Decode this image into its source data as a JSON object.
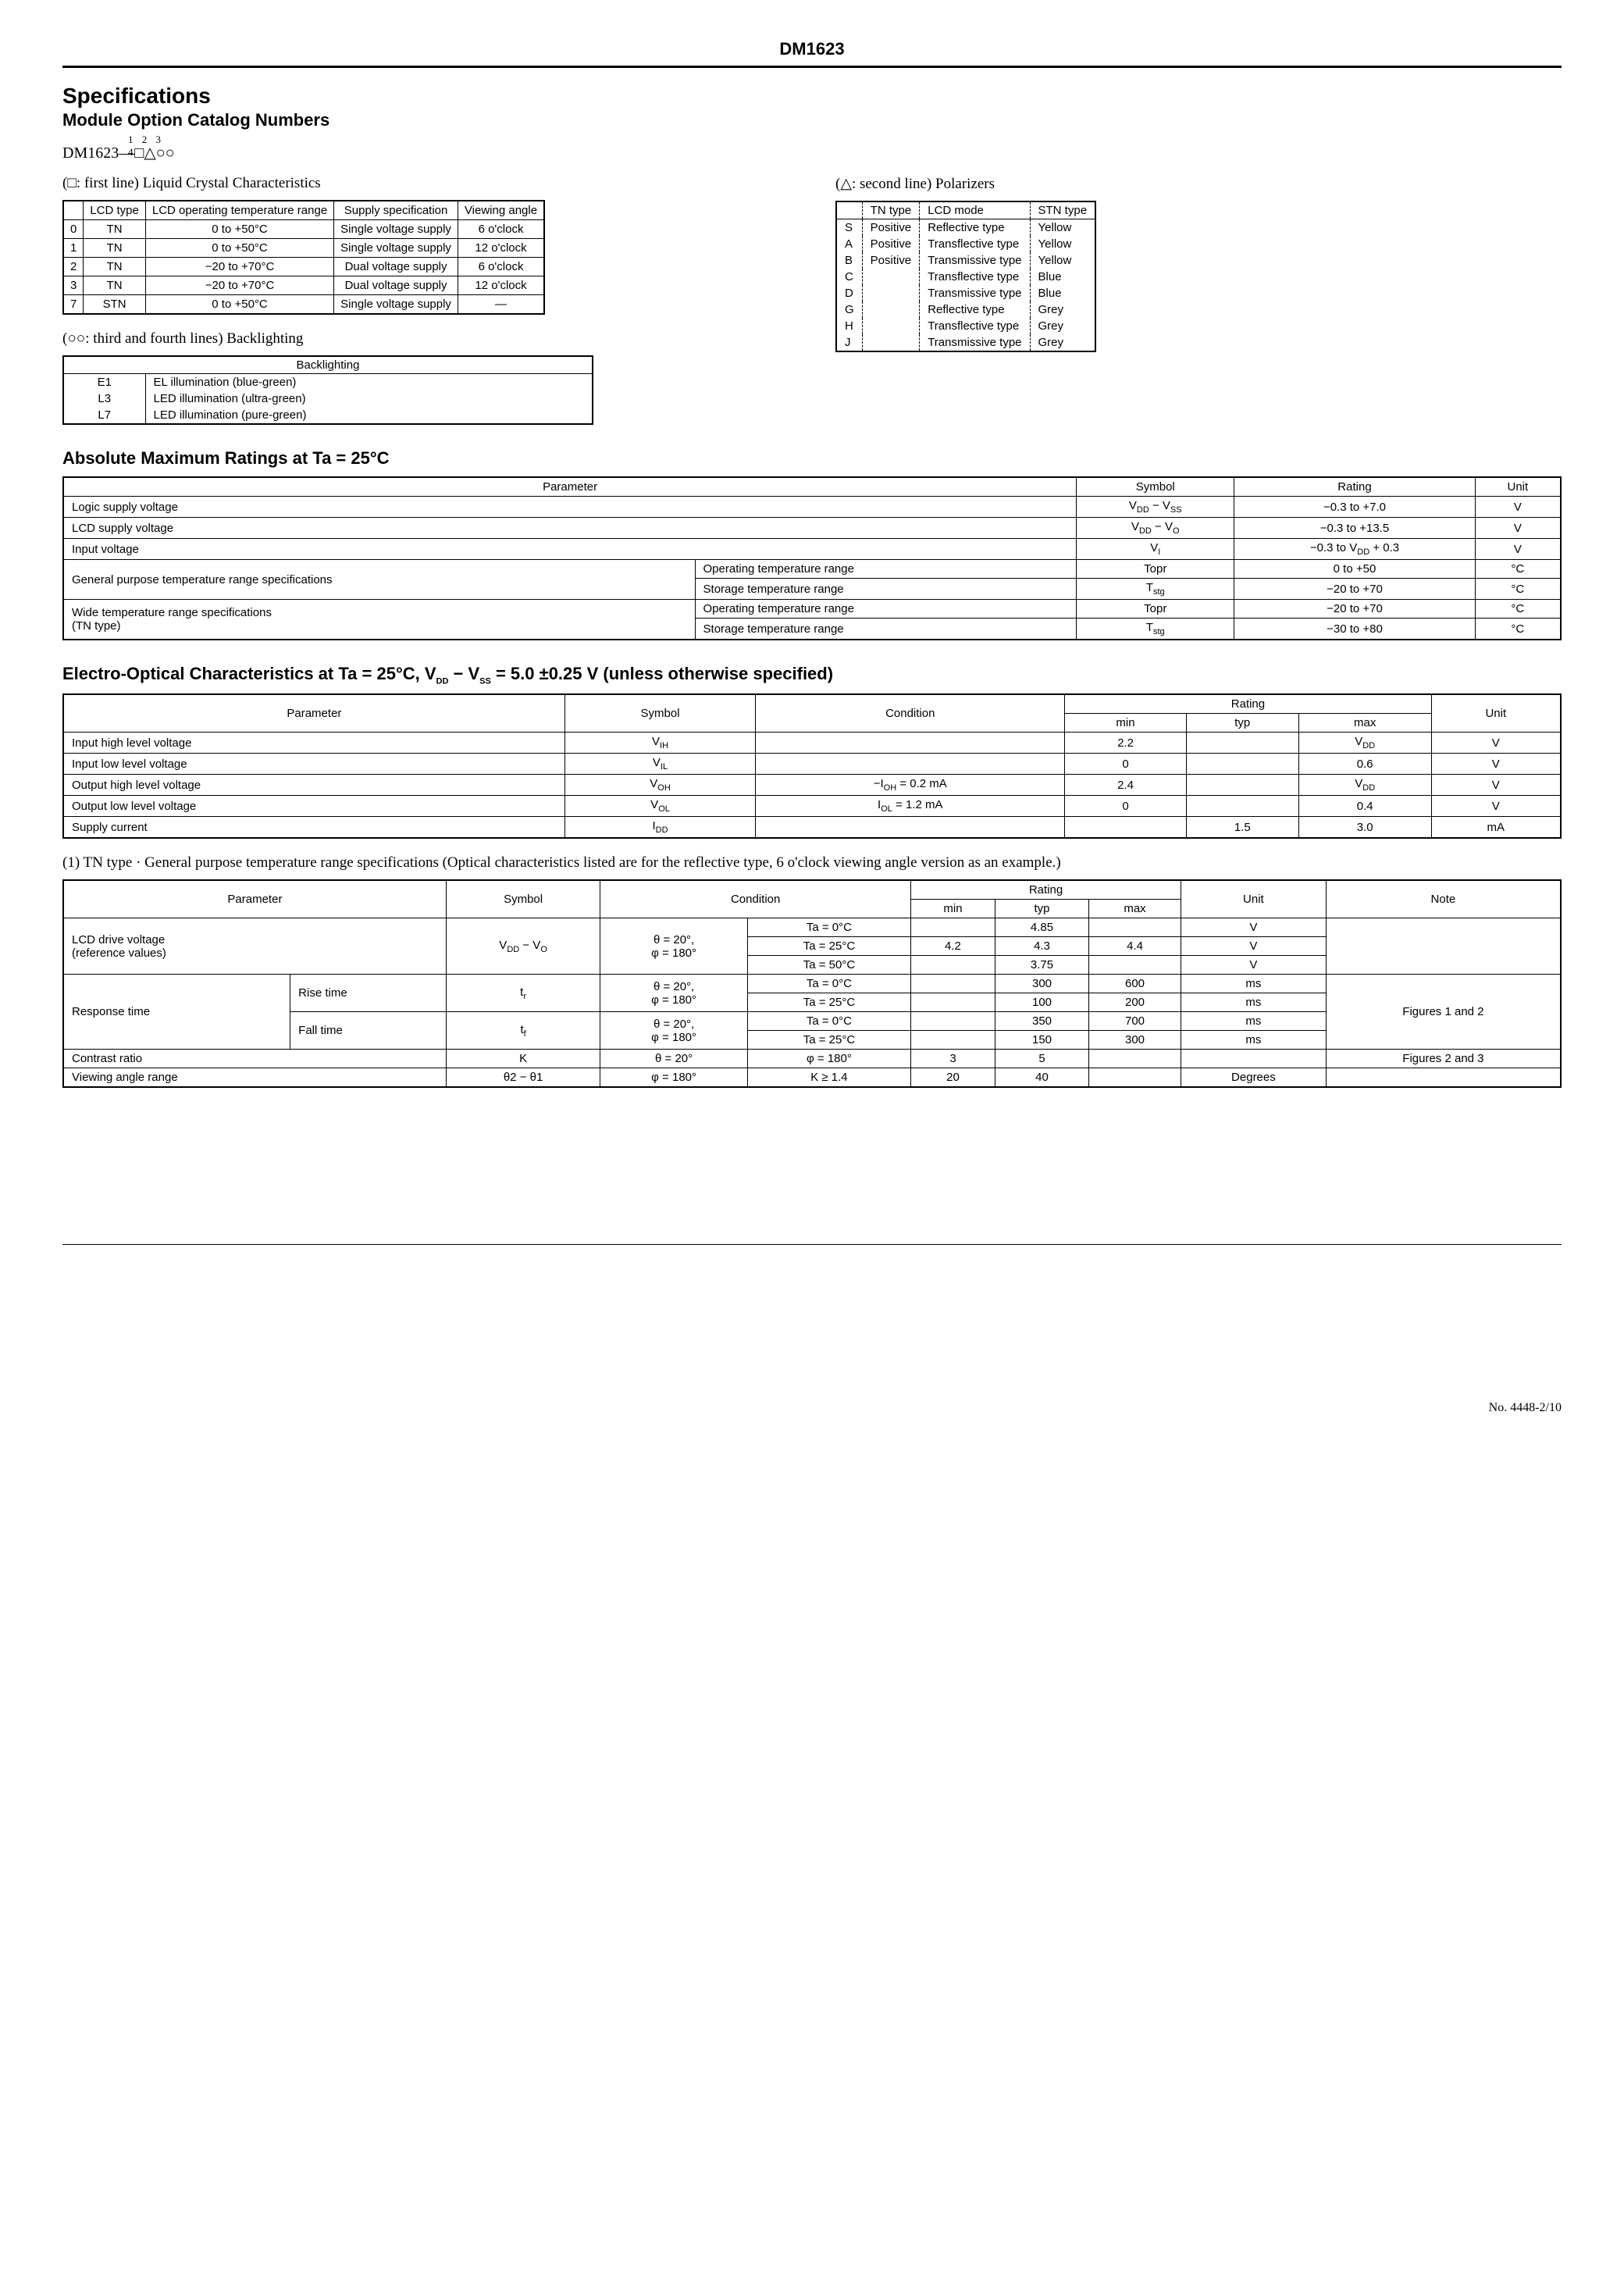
{
  "header": {
    "part_number": "DM1623"
  },
  "section1": {
    "title": "Specifications",
    "subtitle": "Module Option Catalog Numbers",
    "catalog_prefix": "DM1623—",
    "catalog_suffix": "□△○○",
    "digits": "1 2 3 4"
  },
  "lcd_table": {
    "caption": "(□: first line) Liquid Crystal Characteristics",
    "headers": [
      "",
      "LCD type",
      "LCD operating temperature range",
      "Supply specification",
      "Viewing angle"
    ],
    "rows": [
      [
        "0",
        "TN",
        "0 to +50°C",
        "Single voltage supply",
        "6 o'clock"
      ],
      [
        "1",
        "TN",
        "0 to +50°C",
        "Single voltage supply",
        "12 o'clock"
      ],
      [
        "2",
        "TN",
        "−20 to +70°C",
        "Dual voltage supply",
        "6 o'clock"
      ],
      [
        "3",
        "TN",
        "−20 to +70°C",
        "Dual voltage supply",
        "12 o'clock"
      ],
      [
        "7",
        "STN",
        "0 to +50°C",
        "Single voltage supply",
        "—"
      ]
    ]
  },
  "polarizer_table": {
    "caption": "(△: second line) Polarizers",
    "headers": [
      "",
      "TN type",
      "LCD mode",
      "STN type"
    ],
    "rows": [
      [
        "S",
        "Positive",
        "Reflective type",
        "Yellow"
      ],
      [
        "A",
        "Positive",
        "Transflective type",
        "Yellow"
      ],
      [
        "B",
        "Positive",
        "Transmissive type",
        "Yellow"
      ],
      [
        "C",
        "",
        "Transflective type",
        "Blue"
      ],
      [
        "D",
        "",
        "Transmissive type",
        "Blue"
      ],
      [
        "G",
        "",
        "Reflective type",
        "Grey"
      ],
      [
        "H",
        "",
        "Transflective type",
        "Grey"
      ],
      [
        "J",
        "",
        "Transmissive type",
        "Grey"
      ]
    ]
  },
  "backlight_table": {
    "caption": "(○○: third and fourth lines) Backlighting",
    "header": "Backlighting",
    "rows": [
      [
        "E1",
        "EL illumination (blue-green)"
      ],
      [
        "L3",
        "LED illumination (ultra-green)"
      ],
      [
        "L7",
        "LED illumination (pure-green)"
      ]
    ]
  },
  "abs_max": {
    "title": "Absolute Maximum Ratings at Ta = 25°C",
    "headers": [
      "Parameter",
      "",
      "Symbol",
      "Rating",
      "Unit"
    ],
    "rows": [
      {
        "param": "Logic supply voltage",
        "sub": "",
        "symbol": "V_DD − V_SS",
        "rating": "−0.3 to +7.0",
        "unit": "V"
      },
      {
        "param": "LCD supply voltage",
        "sub": "",
        "symbol": "V_DD − V_O",
        "rating": "−0.3 to +13.5",
        "unit": "V"
      },
      {
        "param": "Input voltage",
        "sub": "",
        "symbol": "V_I",
        "rating": "−0.3 to V_DD + 0.3",
        "unit": "V"
      },
      {
        "param": "General purpose temperature range specifications",
        "sub": "Operating temperature range",
        "symbol": "Topr",
        "rating": "0 to +50",
        "unit": "°C"
      },
      {
        "param": "",
        "sub": "Storage temperature range",
        "symbol": "T_stg",
        "rating": "−20 to +70",
        "unit": "°C"
      },
      {
        "param": "Wide temperature range specifications (TN type)",
        "sub": "Operating temperature range",
        "symbol": "Topr",
        "rating": "−20 to +70",
        "unit": "°C"
      },
      {
        "param": "",
        "sub": "Storage temperature range",
        "symbol": "T_stg",
        "rating": "−30 to +80",
        "unit": "°C"
      }
    ]
  },
  "electro_optical": {
    "title": "Electro-Optical Characteristics at Ta = 25°C, V_DD − V_SS = 5.0 ±0.25 V (unless otherwise specified)",
    "headers": [
      "Parameter",
      "Symbol",
      "Condition",
      "min",
      "typ",
      "max",
      "Unit"
    ],
    "rows": [
      [
        "Input high level voltage",
        "V_IH",
        "",
        "2.2",
        "",
        "V_DD",
        "V"
      ],
      [
        "Input low level voltage",
        "V_IL",
        "",
        "0",
        "",
        "0.6",
        "V"
      ],
      [
        "Output high level voltage",
        "V_OH",
        "−I_OH = 0.2 mA",
        "2.4",
        "",
        "V_DD",
        "V"
      ],
      [
        "Output low level voltage",
        "V_OL",
        "I_OL = 1.2 mA",
        "0",
        "",
        "0.4",
        "V"
      ],
      [
        "Supply current",
        "I_DD",
        "",
        "",
        "1.5",
        "3.0",
        "mA"
      ]
    ]
  },
  "tn_note": "(1) TN type · General purpose temperature range specifications (Optical characteristics listed are for the reflective type, 6 o'clock viewing angle version as an example.)",
  "tn_table": {
    "headers": [
      "Parameter",
      "",
      "Symbol",
      "Condition",
      "",
      "min",
      "typ",
      "max",
      "Unit",
      "Note"
    ],
    "rows": [
      {
        "param": "LCD drive voltage (reference values)",
        "sub": "",
        "symbol": "V_DD − V_O",
        "cond1": "θ = 20°, φ = 180°",
        "cond2": "Ta = 0°C",
        "min": "",
        "typ": "4.85",
        "max": "",
        "unit": "V",
        "note": ""
      },
      {
        "param": "",
        "sub": "",
        "symbol": "",
        "cond1": "",
        "cond2": "Ta = 25°C",
        "min": "4.2",
        "typ": "4.3",
        "max": "4.4",
        "unit": "V",
        "note": ""
      },
      {
        "param": "",
        "sub": "",
        "symbol": "",
        "cond1": "",
        "cond2": "Ta = 50°C",
        "min": "",
        "typ": "3.75",
        "max": "",
        "unit": "V",
        "note": ""
      },
      {
        "param": "Response time",
        "sub": "Rise time",
        "symbol": "t_r",
        "cond1": "θ = 20°, φ = 180°",
        "cond2": "Ta = 0°C",
        "min": "",
        "typ": "300",
        "max": "600",
        "unit": "ms",
        "note": "Figures 1 and 2"
      },
      {
        "param": "",
        "sub": "",
        "symbol": "",
        "cond1": "",
        "cond2": "Ta = 25°C",
        "min": "",
        "typ": "100",
        "max": "200",
        "unit": "ms",
        "note": ""
      },
      {
        "param": "",
        "sub": "Fall time",
        "symbol": "t_f",
        "cond1": "θ = 20°, φ = 180°",
        "cond2": "Ta = 0°C",
        "min": "",
        "typ": "350",
        "max": "700",
        "unit": "ms",
        "note": ""
      },
      {
        "param": "",
        "sub": "",
        "symbol": "",
        "cond1": "",
        "cond2": "Ta = 25°C",
        "min": "",
        "typ": "150",
        "max": "300",
        "unit": "ms",
        "note": ""
      },
      {
        "param": "Contrast ratio",
        "sub": "",
        "symbol": "K",
        "cond1": "θ = 20°",
        "cond2": "φ = 180°",
        "min": "3",
        "typ": "5",
        "max": "",
        "unit": "",
        "note": "Figures 2 and 3"
      },
      {
        "param": "Viewing angle range",
        "sub": "",
        "symbol": "θ2 − θ1",
        "cond1": "φ = 180°",
        "cond2": "K ≥ 1.4",
        "min": "20",
        "typ": "40",
        "max": "",
        "unit": "Degrees",
        "note": ""
      }
    ]
  },
  "footer": {
    "page": "No. 4448-2/10"
  }
}
